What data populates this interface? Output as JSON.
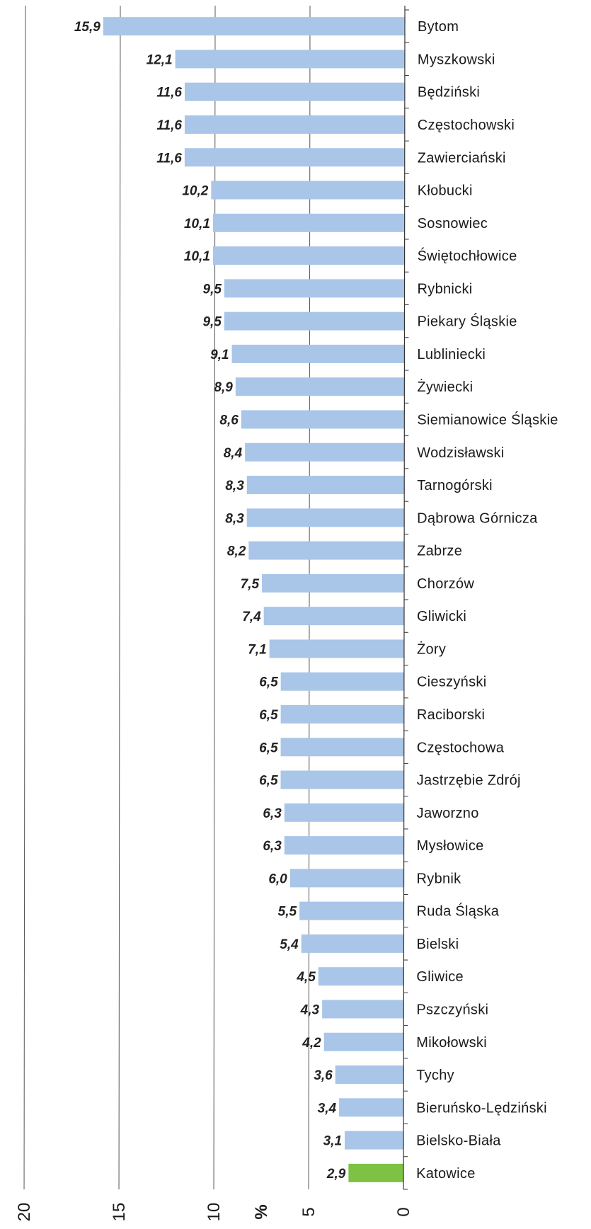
{
  "chart_data": {
    "type": "bar",
    "orientation": "horizontal",
    "x_reversed": true,
    "xlabel": "%",
    "xlim": [
      0,
      20
    ],
    "xticks": [
      "0",
      "5",
      "10",
      "15",
      "20"
    ],
    "grid": "vertical lines at 5, 10, 15",
    "colors": {
      "bar": "#a9c6e8",
      "highlight": "#7dc242",
      "grid": "#555555"
    },
    "highlight_category": "Katowice",
    "categories": [
      "Bytom",
      "Myszkowski",
      "Będziński",
      "Częstochowski",
      "Zawierciański",
      "Kłobucki",
      "Sosnowiec",
      "Świętochłowice",
      "Rybnicki",
      "Piekary Śląskie",
      "Lubliniecki",
      "Żywiecki",
      "Siemianowice Śląskie",
      "Wodzisławski",
      "Tarnogórski",
      "Dąbrowa Górnicza",
      "Zabrze",
      "Chorzów",
      "Gliwicki",
      "Żory",
      "Cieszyński",
      "Raciborski",
      "Częstochowa",
      "Jastrzębie Zdrój",
      "Jaworzno",
      "Mysłowice",
      "Rybnik",
      "Ruda Śląska",
      "Bielski",
      "Gliwice",
      "Pszczyński",
      "Mikołowski",
      "Tychy",
      "Bieruńsko-Lędziński",
      "Bielsko-Biała",
      "Katowice"
    ],
    "values": [
      15.9,
      12.1,
      11.6,
      11.6,
      11.6,
      10.2,
      10.1,
      10.1,
      9.5,
      9.5,
      9.1,
      8.9,
      8.6,
      8.4,
      8.3,
      8.3,
      8.2,
      7.5,
      7.4,
      7.1,
      6.5,
      6.5,
      6.5,
      6.5,
      6.3,
      6.3,
      6.0,
      5.5,
      5.4,
      4.5,
      4.3,
      4.2,
      3.6,
      3.4,
      3.1,
      2.9
    ],
    "value_labels": [
      "15,9",
      "12,1",
      "11,6",
      "11,6",
      "11,6",
      "10,2",
      "10,1",
      "10,1",
      "9,5",
      "9,5",
      "9,1",
      "8,9",
      "8,6",
      "8,4",
      "8,3",
      "8,3",
      "8,2",
      "7,5",
      "7,4",
      "7,1",
      "6,5",
      "6,5",
      "6,5",
      "6,5",
      "6,3",
      "6,3",
      "6,0",
      "5,5",
      "5,4",
      "4,5",
      "4,3",
      "4,2",
      "3,6",
      "3,4",
      "3,1",
      "2,9"
    ]
  }
}
